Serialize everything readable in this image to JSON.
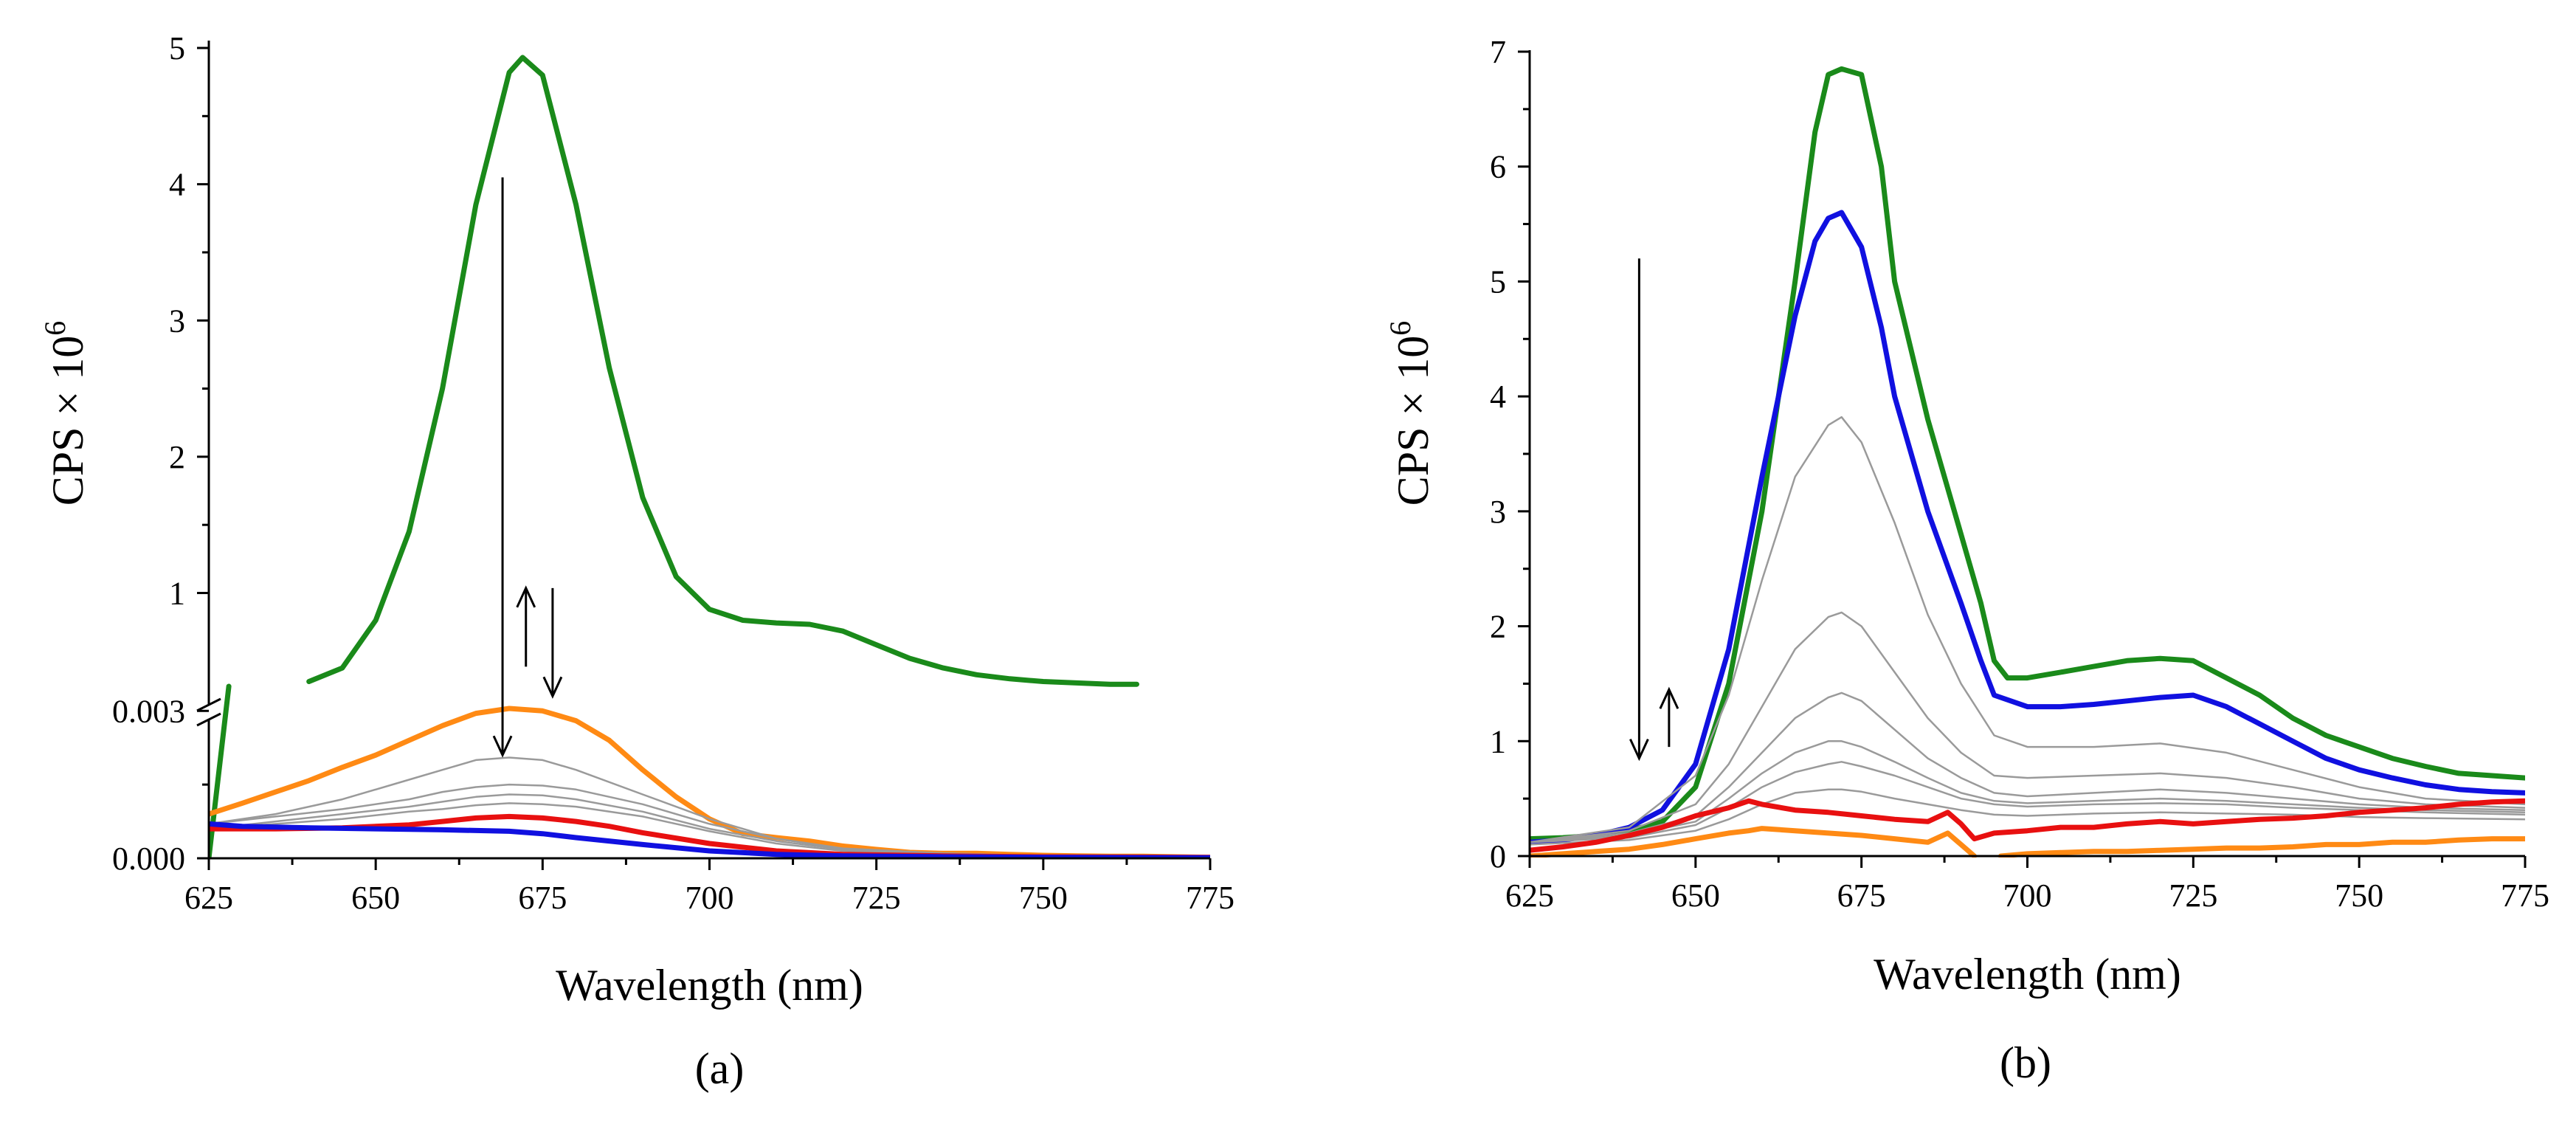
{
  "colors": {
    "green": "#1a8a1a",
    "blue": "#1010e0",
    "red": "#e81010",
    "orange": "#ff8a14",
    "gray": "#9a9a9a",
    "axis": "#000000"
  },
  "chart_data": [
    {
      "type": "line",
      "panel_label": "(a)",
      "xlabel": "Wavelength (nm)",
      "ylabel": "CPS × 10",
      "ylabel_sup": "6",
      "x_range": [
        625,
        775
      ],
      "x_ticks": [
        625,
        650,
        675,
        700,
        725,
        750,
        775
      ],
      "broken_y_axis": true,
      "y_lower": {
        "range": [
          0,
          0.0035
        ],
        "ticks": [
          0.0,
          0.003
        ],
        "tick_labels": [
          "0.000",
          "0.003"
        ]
      },
      "y_upper": {
        "range": [
          0.25,
          5
        ],
        "ticks": [
          1,
          2,
          3,
          4,
          5
        ],
        "tick_labels": [
          "1",
          "2",
          "3",
          "4",
          "5"
        ]
      },
      "grid": false,
      "legend": "none",
      "annotations": [
        {
          "type": "arrow",
          "direction": "down",
          "x": 669,
          "from": 4.05,
          "to_lower": 0.0021
        },
        {
          "type": "arrow",
          "direction": "up",
          "x": 672.5,
          "from_lower": 0.0039,
          "to_lower": 0.0055
        },
        {
          "type": "arrow",
          "direction": "down",
          "x": 676.5,
          "from_lower": 0.0055,
          "to_lower": 0.0033
        }
      ],
      "series": [
        {
          "color": "green",
          "axis": "upper",
          "x": [
            640,
            645,
            650,
            655,
            660,
            665,
            670,
            672,
            675,
            680,
            685,
            690,
            695,
            700,
            705,
            710,
            715,
            720,
            725,
            730,
            735,
            740,
            745,
            750,
            755,
            760,
            764
          ],
          "y": [
            0.35,
            0.45,
            0.8,
            1.45,
            2.5,
            3.85,
            4.82,
            4.93,
            4.8,
            3.85,
            2.65,
            1.7,
            1.12,
            0.88,
            0.8,
            0.78,
            0.77,
            0.72,
            0.62,
            0.52,
            0.45,
            0.4,
            0.37,
            0.35,
            0.34,
            0.33,
            0.33
          ]
        },
        {
          "color": "green",
          "axis": "lower",
          "x": [
            625,
            628
          ],
          "y": [
            0,
            0.0035
          ]
        },
        {
          "color": "orange",
          "axis": "lower",
          "x": [
            625,
            630,
            635,
            640,
            645,
            650,
            655,
            660,
            665,
            670,
            675,
            680,
            685,
            690,
            695,
            700,
            705,
            710,
            715,
            720,
            725,
            730,
            735,
            740,
            745,
            750,
            755,
            760,
            765,
            770,
            775
          ],
          "y": [
            0.0009,
            0.00112,
            0.00135,
            0.00158,
            0.00185,
            0.0021,
            0.0024,
            0.0027,
            0.00295,
            0.00305,
            0.003,
            0.0028,
            0.0024,
            0.0018,
            0.00125,
            0.0008,
            0.0005,
            0.00042,
            0.00035,
            0.00025,
            0.00018,
            0.00012,
            0.0001,
            0.0001,
            8e-05,
            6e-05,
            5e-05,
            4e-05,
            4e-05,
            3e-05,
            2e-05
          ]
        },
        {
          "color": "gray",
          "axis": "lower",
          "x": [
            625,
            635,
            645,
            655,
            660,
            665,
            670,
            675,
            680,
            690,
            700,
            710,
            720,
            735,
            750,
            775
          ],
          "y": [
            0.0007,
            0.0009,
            0.0012,
            0.0016,
            0.0018,
            0.002,
            0.00205,
            0.002,
            0.0018,
            0.0013,
            0.0008,
            0.0004,
            0.0002,
            0.0001,
            5e-05,
            2e-05
          ]
        },
        {
          "color": "gray",
          "axis": "lower",
          "x": [
            625,
            635,
            645,
            655,
            660,
            665,
            670,
            675,
            680,
            690,
            700,
            710,
            720,
            735,
            750,
            775
          ],
          "y": [
            0.0007,
            0.00085,
            0.001,
            0.0012,
            0.00135,
            0.00145,
            0.0015,
            0.00148,
            0.0014,
            0.0011,
            0.0007,
            0.0004,
            0.0002,
            0.0001,
            5e-05,
            2e-05
          ]
        },
        {
          "color": "gray",
          "axis": "lower",
          "x": [
            625,
            635,
            645,
            655,
            660,
            665,
            670,
            675,
            680,
            690,
            700,
            710,
            720,
            735,
            750,
            775
          ],
          "y": [
            0.0006,
            0.00075,
            0.0009,
            0.00105,
            0.00115,
            0.00125,
            0.0013,
            0.00128,
            0.0012,
            0.00095,
            0.0006,
            0.00035,
            0.00018,
            0.0001,
            5e-05,
            2e-05
          ]
        },
        {
          "color": "gray",
          "axis": "lower",
          "x": [
            625,
            635,
            645,
            655,
            660,
            665,
            670,
            675,
            680,
            690,
            700,
            710,
            720,
            735,
            750,
            775
          ],
          "y": [
            0.0006,
            0.0007,
            0.0008,
            0.00095,
            0.001,
            0.00108,
            0.00112,
            0.0011,
            0.00105,
            0.00085,
            0.00055,
            0.0003,
            0.00015,
            8e-05,
            4e-05,
            2e-05
          ]
        },
        {
          "color": "red",
          "axis": "lower",
          "x": [
            625,
            635,
            645,
            655,
            660,
            665,
            670,
            675,
            680,
            685,
            690,
            700,
            710,
            720,
            735,
            750,
            775
          ],
          "y": [
            0.0006,
            0.0006,
            0.00062,
            0.00068,
            0.00075,
            0.00082,
            0.00085,
            0.00082,
            0.00075,
            0.00065,
            0.00052,
            0.0003,
            0.00015,
            8e-05,
            5e-05,
            3e-05,
            2e-05
          ]
        },
        {
          "color": "blue",
          "axis": "lower",
          "x": [
            625,
            630,
            640,
            650,
            660,
            670,
            675,
            680,
            690,
            700,
            710,
            720,
            735,
            750,
            775
          ],
          "y": [
            0.0007,
            0.00065,
            0.00062,
            0.0006,
            0.00058,
            0.00055,
            0.0005,
            0.00042,
            0.00028,
            0.00015,
            8e-05,
            5e-05,
            3e-05,
            2e-05,
            1e-05
          ]
        }
      ]
    },
    {
      "type": "line",
      "panel_label": "(b)",
      "xlabel": "Wavelength (nm)",
      "ylabel": "CPS × 10",
      "ylabel_sup": "6",
      "x_range": [
        625,
        775
      ],
      "x_ticks": [
        625,
        650,
        675,
        700,
        725,
        750,
        775
      ],
      "y_range": [
        0,
        7
      ],
      "y_ticks": [
        0,
        1,
        2,
        3,
        4,
        5,
        6,
        7
      ],
      "grid": false,
      "legend": "none",
      "annotations": [
        {
          "type": "arrow",
          "direction": "down",
          "x": 641.5,
          "from": 5.2,
          "to": 0.85
        },
        {
          "type": "arrow",
          "direction": "up",
          "x": 646,
          "from": 0.95,
          "to": 1.45
        }
      ],
      "series": [
        {
          "color": "green",
          "x": [
            625,
            630,
            635,
            640,
            645,
            650,
            655,
            660,
            665,
            668,
            670,
            672,
            675,
            678,
            680,
            685,
            690,
            693,
            695,
            697,
            700,
            705,
            710,
            715,
            720,
            725,
            730,
            735,
            740,
            745,
            750,
            755,
            760,
            765,
            770,
            775
          ],
          "y": [
            0.15,
            0.16,
            0.18,
            0.22,
            0.3,
            0.6,
            1.5,
            3.0,
            5.0,
            6.3,
            6.8,
            6.85,
            6.8,
            6.0,
            5.0,
            3.8,
            2.8,
            2.2,
            1.7,
            1.55,
            1.55,
            1.6,
            1.65,
            1.7,
            1.72,
            1.7,
            1.55,
            1.4,
            1.2,
            1.05,
            0.95,
            0.85,
            0.78,
            0.72,
            0.7,
            0.68
          ]
        },
        {
          "color": "blue",
          "x": [
            625,
            630,
            635,
            640,
            645,
            650,
            655,
            660,
            665,
            668,
            670,
            672,
            675,
            678,
            680,
            685,
            690,
            693,
            695,
            700,
            705,
            710,
            715,
            720,
            725,
            730,
            735,
            740,
            745,
            750,
            755,
            760,
            765,
            770,
            775
          ],
          "y": [
            0.12,
            0.14,
            0.18,
            0.25,
            0.4,
            0.8,
            1.8,
            3.3,
            4.7,
            5.35,
            5.55,
            5.6,
            5.3,
            4.6,
            4.0,
            3.0,
            2.2,
            1.7,
            1.4,
            1.3,
            1.3,
            1.32,
            1.35,
            1.38,
            1.4,
            1.3,
            1.15,
            1.0,
            0.85,
            0.75,
            0.68,
            0.62,
            0.58,
            0.56,
            0.55
          ]
        },
        {
          "color": "gray",
          "x": [
            625,
            640,
            650,
            655,
            660,
            665,
            670,
            672,
            675,
            680,
            685,
            690,
            695,
            700,
            710,
            720,
            730,
            740,
            750,
            760,
            775
          ],
          "y": [
            0.12,
            0.25,
            0.7,
            1.4,
            2.4,
            3.3,
            3.75,
            3.82,
            3.6,
            2.9,
            2.1,
            1.5,
            1.05,
            0.95,
            0.95,
            0.98,
            0.9,
            0.75,
            0.6,
            0.5,
            0.45
          ]
        },
        {
          "color": "gray",
          "x": [
            625,
            640,
            650,
            655,
            660,
            665,
            670,
            672,
            675,
            680,
            685,
            690,
            695,
            700,
            710,
            720,
            730,
            740,
            750,
            760,
            775
          ],
          "y": [
            0.12,
            0.22,
            0.45,
            0.8,
            1.3,
            1.8,
            2.08,
            2.12,
            2.0,
            1.6,
            1.2,
            0.9,
            0.7,
            0.68,
            0.7,
            0.72,
            0.68,
            0.6,
            0.5,
            0.45,
            0.42
          ]
        },
        {
          "color": "gray",
          "x": [
            625,
            640,
            650,
            655,
            660,
            665,
            670,
            672,
            675,
            680,
            685,
            690,
            695,
            700,
            710,
            720,
            730,
            740,
            750,
            760,
            775
          ],
          "y": [
            0.12,
            0.2,
            0.35,
            0.6,
            0.9,
            1.2,
            1.38,
            1.42,
            1.35,
            1.1,
            0.85,
            0.68,
            0.55,
            0.52,
            0.55,
            0.58,
            0.55,
            0.5,
            0.45,
            0.42,
            0.4
          ]
        },
        {
          "color": "gray",
          "x": [
            625,
            640,
            650,
            655,
            660,
            665,
            670,
            672,
            675,
            680,
            685,
            690,
            695,
            700,
            710,
            720,
            730,
            740,
            750,
            760,
            775
          ],
          "y": [
            0.12,
            0.18,
            0.3,
            0.5,
            0.72,
            0.9,
            1.0,
            1.0,
            0.95,
            0.82,
            0.68,
            0.55,
            0.48,
            0.46,
            0.48,
            0.5,
            0.48,
            0.45,
            0.42,
            0.4,
            0.38
          ]
        },
        {
          "color": "gray",
          "x": [
            625,
            640,
            650,
            655,
            660,
            665,
            670,
            672,
            675,
            680,
            685,
            690,
            695,
            700,
            710,
            720,
            730,
            740,
            750,
            760,
            775
          ],
          "y": [
            0.12,
            0.16,
            0.27,
            0.42,
            0.6,
            0.73,
            0.8,
            0.82,
            0.78,
            0.7,
            0.6,
            0.5,
            0.45,
            0.43,
            0.45,
            0.46,
            0.45,
            0.42,
            0.4,
            0.38,
            0.36
          ]
        },
        {
          "color": "gray",
          "x": [
            625,
            640,
            650,
            655,
            660,
            665,
            670,
            672,
            675,
            680,
            685,
            690,
            695,
            700,
            710,
            720,
            730,
            740,
            750,
            760,
            775
          ],
          "y": [
            0.1,
            0.14,
            0.22,
            0.32,
            0.45,
            0.55,
            0.58,
            0.58,
            0.56,
            0.5,
            0.45,
            0.4,
            0.36,
            0.35,
            0.37,
            0.38,
            0.37,
            0.36,
            0.34,
            0.33,
            0.32
          ]
        },
        {
          "color": "red",
          "x": [
            625,
            630,
            635,
            640,
            645,
            650,
            655,
            658,
            660,
            665,
            670,
            675,
            680,
            685,
            688,
            690,
            692,
            695,
            700,
            705,
            710,
            715,
            720,
            725,
            730,
            735,
            740,
            745,
            750,
            755,
            760,
            765,
            770,
            775
          ],
          "y": [
            0.05,
            0.08,
            0.12,
            0.18,
            0.25,
            0.35,
            0.42,
            0.48,
            0.45,
            0.4,
            0.38,
            0.35,
            0.32,
            0.3,
            0.38,
            0.28,
            0.15,
            0.2,
            0.22,
            0.25,
            0.25,
            0.28,
            0.3,
            0.28,
            0.3,
            0.32,
            0.33,
            0.35,
            0.38,
            0.4,
            0.42,
            0.45,
            0.47,
            0.48
          ]
        },
        {
          "color": "orange",
          "x": [
            625,
            630,
            635,
            640,
            645,
            650,
            655,
            658,
            660,
            665,
            670,
            675,
            680,
            685,
            688,
            690,
            692
          ],
          "y": [
            0.0,
            0.02,
            0.04,
            0.06,
            0.1,
            0.15,
            0.2,
            0.22,
            0.24,
            0.22,
            0.2,
            0.18,
            0.15,
            0.12,
            0.2,
            0.1,
            0.0
          ]
        },
        {
          "color": "orange",
          "x": [
            696,
            700,
            705,
            710,
            715,
            720,
            725,
            730,
            735,
            740,
            745,
            750,
            755,
            760,
            765,
            770,
            775
          ],
          "y": [
            0.0,
            0.02,
            0.03,
            0.04,
            0.04,
            0.05,
            0.06,
            0.07,
            0.07,
            0.08,
            0.1,
            0.1,
            0.12,
            0.12,
            0.14,
            0.15,
            0.15
          ]
        }
      ]
    }
  ]
}
